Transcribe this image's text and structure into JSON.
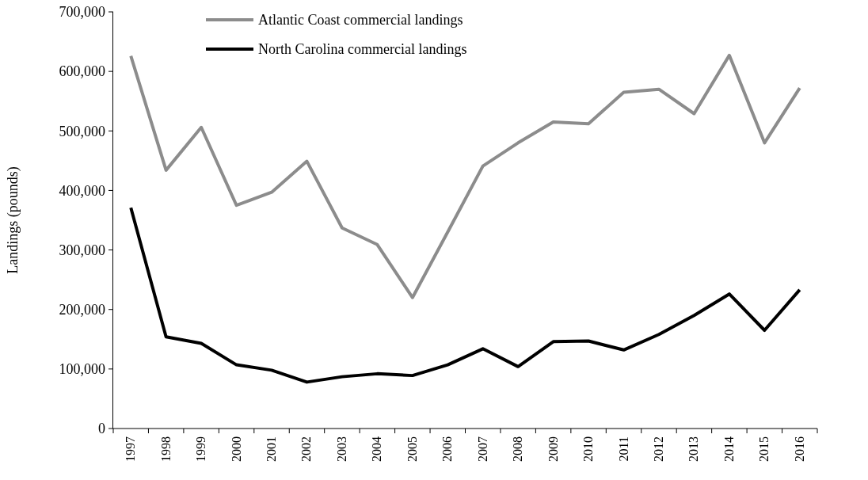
{
  "chart_data": {
    "type": "line",
    "ylabel": "Landings (pounds)",
    "categories": [
      "1997",
      "1998",
      "1999",
      "2000",
      "2001",
      "2002",
      "2003",
      "2004",
      "2005",
      "2006",
      "2007",
      "2008",
      "2009",
      "2010",
      "2011",
      "2012",
      "2013",
      "2014",
      "2015",
      "2016"
    ],
    "series": [
      {
        "name": "Atlantic Coast commercial landings",
        "color": "#8c8c8c",
        "values": [
          626000,
          434000,
          506000,
          375000,
          397000,
          449000,
          337000,
          309000,
          220000,
          330000,
          441000,
          480000,
          515000,
          512000,
          565000,
          570000,
          529000,
          627000,
          480000,
          572000
        ]
      },
      {
        "name": "North Carolina commercial landings",
        "color": "#000000",
        "values": [
          371000,
          154000,
          143000,
          107000,
          98000,
          78000,
          87000,
          92000,
          89000,
          107000,
          134000,
          104000,
          146000,
          147000,
          132000,
          158000,
          190000,
          226000,
          165000,
          233000
        ]
      }
    ],
    "ylim": [
      0,
      700000
    ],
    "yticks": [
      {
        "value": 0,
        "label": "0"
      },
      {
        "value": 100000,
        "label": "100,000"
      },
      {
        "value": 200000,
        "label": "200,000"
      },
      {
        "value": 300000,
        "label": "300,000"
      },
      {
        "value": 400000,
        "label": "400,000"
      },
      {
        "value": 500000,
        "label": "500,000"
      },
      {
        "value": 600000,
        "label": "600,000"
      },
      {
        "value": 700000,
        "label": "700,000"
      }
    ],
    "legend": "top",
    "marker": "none",
    "line_style": "solid",
    "grid": false
  }
}
